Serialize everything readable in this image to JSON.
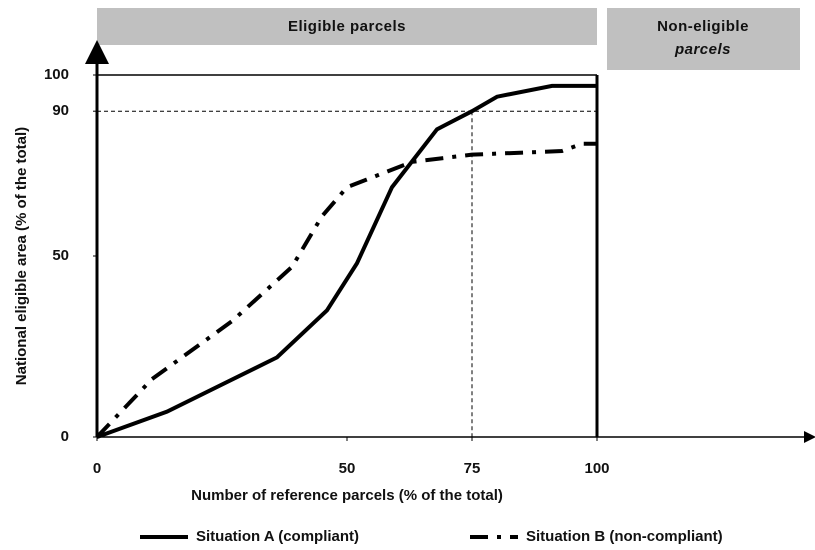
{
  "chart_data": {
    "type": "line",
    "bands": [
      {
        "label": "Eligible parcels"
      },
      {
        "label_lines": [
          "Non-eligible",
          "parcels"
        ]
      }
    ],
    "xlabel": "Number of reference parcels (% of the total)",
    "ylabel": "National eligible area (% of the total)",
    "xlim": [
      0,
      100
    ],
    "ylim": [
      0,
      100
    ],
    "xticks": [
      0,
      50,
      75,
      100
    ],
    "yticks": [
      0,
      50,
      90,
      100
    ],
    "reference": {
      "x": 75,
      "y": 90
    },
    "series": [
      {
        "name": "Situation A (compliant)",
        "color": "#000000",
        "style": "solid",
        "x": [
          0,
          14,
          36,
          46,
          52,
          59,
          68,
          75,
          80,
          91,
          100
        ],
        "values": [
          0,
          7,
          22,
          35,
          48,
          69,
          85,
          90,
          94,
          97,
          97
        ]
      },
      {
        "name": "Situation B (non-compliant)",
        "color": "#000000",
        "style": "dashdot",
        "x": [
          0,
          11,
          27,
          39,
          45,
          50,
          63,
          75,
          93,
          97,
          100
        ],
        "values": [
          0,
          16,
          32,
          47,
          61,
          69,
          76,
          78,
          79,
          81,
          81
        ]
      }
    ]
  }
}
